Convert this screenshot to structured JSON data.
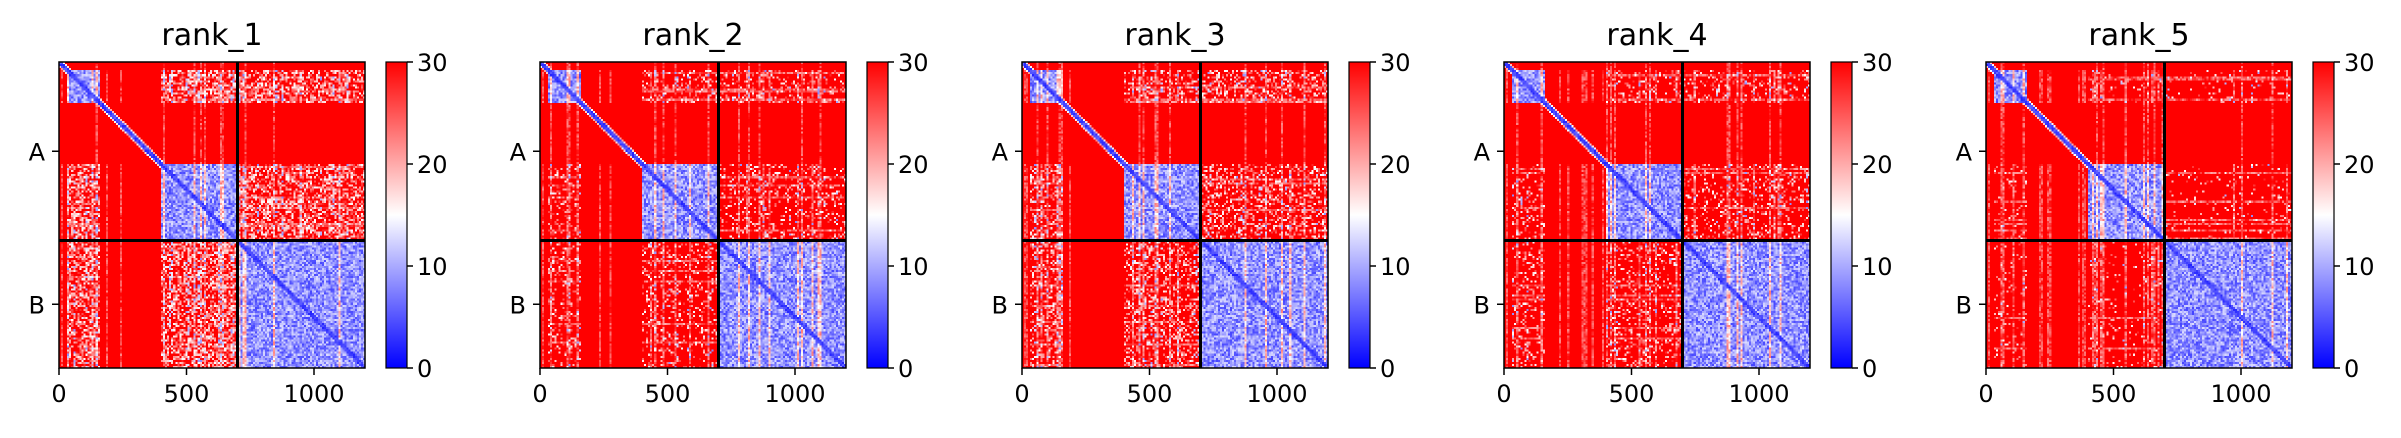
{
  "figure": {
    "colorbar": {
      "ticks": [
        "0",
        "10",
        "20",
        "30"
      ],
      "min": 0,
      "max": 30,
      "colormap": "bwr"
    },
    "colors": {
      "low": "#0000ff",
      "mid": "#ffffff",
      "high": "#ff0000",
      "divider": "#000000"
    },
    "x_ticks": [
      "0",
      "500",
      "1000"
    ],
    "chain_labels": [
      "A",
      "B"
    ]
  },
  "chart_data": [
    {
      "type": "heatmap",
      "title": "rank_1",
      "x_range": [
        0,
        1200
      ],
      "y_range": [
        0,
        1200
      ],
      "x_ticks": [
        0,
        500,
        1000
      ],
      "y_tick_labels": [
        "A",
        "B"
      ],
      "chain_boundary": 700,
      "chains": [
        {
          "name": "A",
          "start": 0,
          "end": 700
        },
        {
          "name": "B",
          "start": 700,
          "end": 1200
        }
      ],
      "colorbar_range": [
        0,
        30
      ],
      "low_value_blocks": [
        [
          30,
          160
        ],
        [
          400,
          700
        ],
        [
          700,
          1200
        ]
      ],
      "interchain_contact_level": "high",
      "colormap": "bwr"
    },
    {
      "type": "heatmap",
      "title": "rank_2",
      "x_range": [
        0,
        1200
      ],
      "y_range": [
        0,
        1200
      ],
      "x_ticks": [
        0,
        500,
        1000
      ],
      "y_tick_labels": [
        "A",
        "B"
      ],
      "chain_boundary": 700,
      "chains": [
        {
          "name": "A",
          "start": 0,
          "end": 700
        },
        {
          "name": "B",
          "start": 700,
          "end": 1200
        }
      ],
      "colorbar_range": [
        0,
        30
      ],
      "low_value_blocks": [
        [
          30,
          160
        ],
        [
          400,
          700
        ],
        [
          700,
          1200
        ]
      ],
      "interchain_contact_level": "low",
      "colormap": "bwr"
    },
    {
      "type": "heatmap",
      "title": "rank_3",
      "x_range": [
        0,
        1200
      ],
      "y_range": [
        0,
        1200
      ],
      "x_ticks": [
        0,
        500,
        1000
      ],
      "y_tick_labels": [
        "A",
        "B"
      ],
      "chain_boundary": 700,
      "chains": [
        {
          "name": "A",
          "start": 0,
          "end": 700
        },
        {
          "name": "B",
          "start": 700,
          "end": 1200
        }
      ],
      "colorbar_range": [
        0,
        30
      ],
      "low_value_blocks": [
        [
          30,
          160
        ],
        [
          400,
          700
        ],
        [
          700,
          1200
        ]
      ],
      "interchain_contact_level": "medium",
      "colormap": "bwr"
    },
    {
      "type": "heatmap",
      "title": "rank_4",
      "x_range": [
        0,
        1200
      ],
      "y_range": [
        0,
        1200
      ],
      "x_ticks": [
        0,
        500,
        1000
      ],
      "y_tick_labels": [
        "A",
        "B"
      ],
      "chain_boundary": 700,
      "chains": [
        {
          "name": "A",
          "start": 0,
          "end": 700
        },
        {
          "name": "B",
          "start": 700,
          "end": 1200
        }
      ],
      "colorbar_range": [
        0,
        30
      ],
      "low_value_blocks": [
        [
          30,
          160
        ],
        [
          400,
          700
        ],
        [
          700,
          1200
        ]
      ],
      "interchain_contact_level": "low",
      "colormap": "bwr"
    },
    {
      "type": "heatmap",
      "title": "rank_5",
      "x_range": [
        0,
        1200
      ],
      "y_range": [
        0,
        1200
      ],
      "x_ticks": [
        0,
        500,
        1000
      ],
      "y_tick_labels": [
        "A",
        "B"
      ],
      "chain_boundary": 700,
      "chains": [
        {
          "name": "A",
          "start": 0,
          "end": 700
        },
        {
          "name": "B",
          "start": 700,
          "end": 1200
        }
      ],
      "colorbar_range": [
        0,
        30
      ],
      "low_value_blocks": [
        [
          30,
          160
        ],
        [
          400,
          700
        ],
        [
          700,
          1200
        ]
      ],
      "interchain_contact_level": "none",
      "colormap": "bwr"
    }
  ]
}
